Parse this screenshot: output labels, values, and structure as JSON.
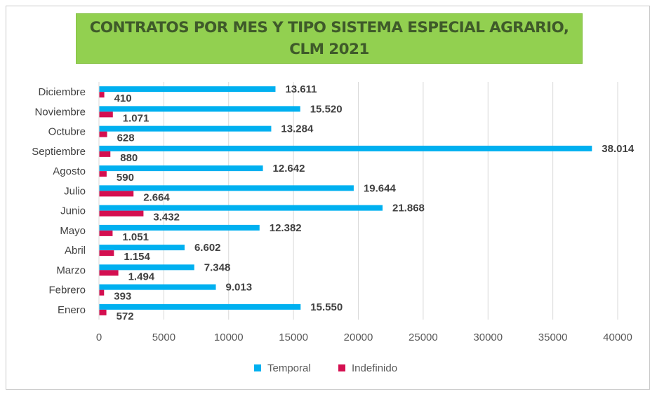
{
  "chart_data": {
    "type": "bar",
    "orientation": "horizontal",
    "title": "CONTRATOS POR MES Y TIPO SISTEMA ESPECIAL AGRARIO, CLM 2021",
    "categories": [
      "Enero",
      "Febrero",
      "Marzo",
      "Abril",
      "Mayo",
      "Junio",
      "Julio",
      "Agosto",
      "Septiembre",
      "Octubre",
      "Noviembre",
      "Diciembre"
    ],
    "series": [
      {
        "name": "Temporal",
        "color": "#00b0f0",
        "values": [
          15550,
          9013,
          7348,
          6602,
          12382,
          21868,
          19644,
          12642,
          38014,
          13284,
          15520,
          13611
        ],
        "labels": [
          "15.550",
          "9.013",
          "7.348",
          "6.602",
          "12.382",
          "21.868",
          "19.644",
          "12.642",
          "38.014",
          "13.284",
          "15.520",
          "13.611"
        ]
      },
      {
        "name": "Indefinido",
        "color": "#d40f50",
        "values": [
          572,
          393,
          1494,
          1154,
          1051,
          3432,
          2664,
          590,
          880,
          628,
          1071,
          410
        ],
        "labels": [
          "572",
          "393",
          "1.494",
          "1.154",
          "1.051",
          "3.432",
          "2.664",
          "590",
          "880",
          "628",
          "1.071",
          "410"
        ]
      }
    ],
    "xlim": [
      0,
      40000
    ],
    "xticks": [
      "0",
      "5000",
      "10000",
      "15000",
      "20000",
      "25000",
      "30000",
      "35000",
      "40000"
    ],
    "grid": "vertical",
    "legend": "bottom",
    "title_background": "#92d050"
  }
}
